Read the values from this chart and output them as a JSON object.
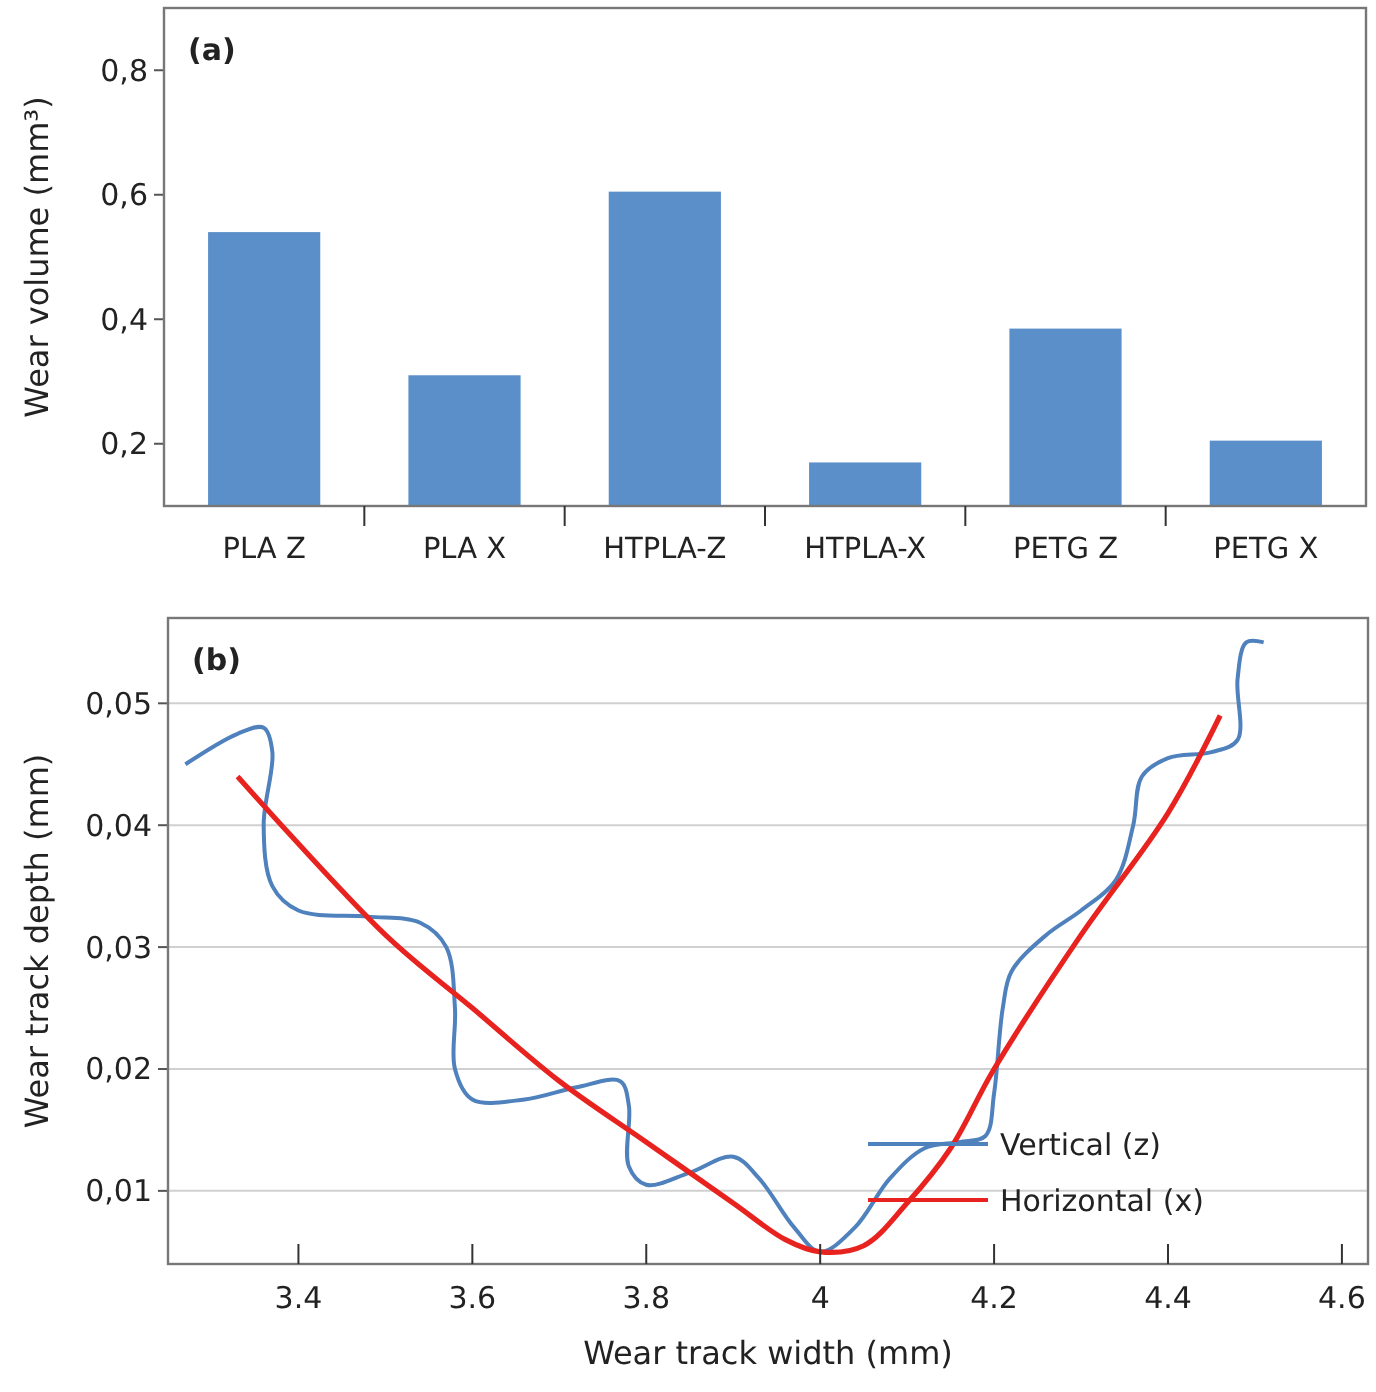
{
  "chart_data": [
    {
      "type": "bar",
      "categories": [
        "PLA Z",
        "PLA X",
        "HTPLA-Z",
        "HTPLA-X",
        "PETG Z",
        "PETG X"
      ],
      "values": [
        0.54,
        0.31,
        0.605,
        0.17,
        0.385,
        0.205
      ],
      "color": "#5b8fc9",
      "ylabel": "Wear volume (mm³)",
      "ylim": [
        0.1,
        0.9
      ],
      "yticks": [
        {
          "value": 0.2,
          "label": "0,2"
        },
        {
          "value": 0.4,
          "label": "0,4"
        },
        {
          "value": 0.6,
          "label": "0,6"
        },
        {
          "value": 0.8,
          "label": "0,8"
        }
      ],
      "grid": false,
      "annotations": [
        "(a)"
      ]
    },
    {
      "type": "line",
      "xlabel": "Wear track width (mm)",
      "ylabel": "Wear track depth (mm)",
      "xlim": [
        3.25,
        4.63
      ],
      "ylim": [
        0.004,
        0.057
      ],
      "xticks": [
        3.4,
        3.6,
        3.8,
        4,
        4.2,
        4.4,
        4.6
      ],
      "yticks": [
        {
          "value": 0.01,
          "label": "0,01"
        },
        {
          "value": 0.02,
          "label": "0,02"
        },
        {
          "value": 0.03,
          "label": "0,03"
        },
        {
          "value": 0.04,
          "label": "0,04"
        },
        {
          "value": 0.05,
          "label": "0,05"
        }
      ],
      "grid": "y",
      "legend": "bottom right",
      "line_style": "solid",
      "annotations": [
        "(b)"
      ],
      "series": [
        {
          "name": "Vertical (z)",
          "color": "#4f81bd",
          "x": [
            3.27,
            3.33,
            3.36,
            3.37,
            3.36,
            3.37,
            3.4,
            3.48,
            3.54,
            3.57,
            3.58,
            3.58,
            3.6,
            3.66,
            3.72,
            3.77,
            3.78,
            3.78,
            3.8,
            3.85,
            3.9,
            3.93,
            3.97,
            4.0,
            4.04,
            4.08,
            4.12,
            4.16,
            4.19,
            4.2,
            4.21,
            4.22,
            4.26,
            4.3,
            4.34,
            4.36,
            4.37,
            4.4,
            4.45,
            4.48,
            4.48,
            4.49,
            4.51
          ],
          "values": [
            0.045,
            0.0475,
            0.048,
            0.046,
            0.04,
            0.035,
            0.033,
            0.0325,
            0.032,
            0.03,
            0.025,
            0.02,
            0.0175,
            0.0175,
            0.0185,
            0.019,
            0.017,
            0.012,
            0.0105,
            0.0115,
            0.0128,
            0.011,
            0.007,
            0.005,
            0.007,
            0.011,
            0.0135,
            0.014,
            0.0145,
            0.018,
            0.025,
            0.028,
            0.031,
            0.033,
            0.0355,
            0.04,
            0.044,
            0.0455,
            0.046,
            0.047,
            0.052,
            0.055,
            0.055
          ]
        },
        {
          "name": "Horizontal (x)",
          "color": "#e8231f",
          "x": [
            3.33,
            3.5,
            3.6,
            3.7,
            3.8,
            3.9,
            3.96,
            4.0,
            4.05,
            4.1,
            4.15,
            4.2,
            4.3,
            4.4,
            4.46
          ],
          "values": [
            0.044,
            0.031,
            0.025,
            0.019,
            0.014,
            0.009,
            0.006,
            0.005,
            0.0055,
            0.009,
            0.0135,
            0.02,
            0.031,
            0.041,
            0.049
          ]
        }
      ]
    }
  ]
}
